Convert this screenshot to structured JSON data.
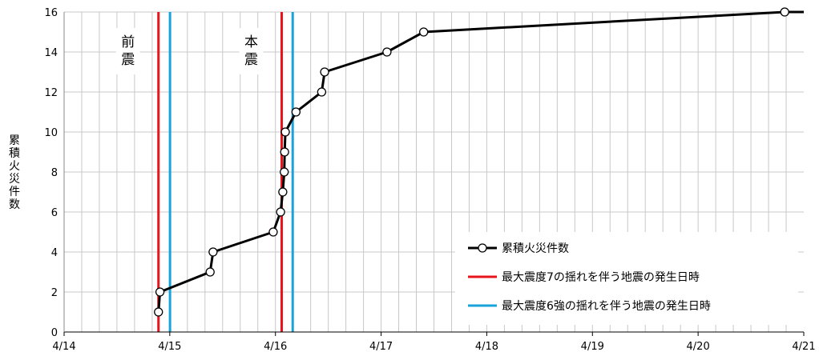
{
  "chart_data": {
    "type": "line",
    "title": "",
    "xlabel": "",
    "ylabel": "累積火災件数",
    "xlim": [
      "4/14",
      "4/21"
    ],
    "ylim": [
      0,
      16
    ],
    "x_ticks": [
      "4/14",
      "4/15",
      "4/16",
      "4/17",
      "4/18",
      "4/19",
      "4/20",
      "4/21"
    ],
    "y_ticks": [
      0,
      2,
      4,
      6,
      8,
      10,
      12,
      14,
      16
    ],
    "grid": true,
    "legend_position": "bottom-right",
    "series": [
      {
        "name": "累積火災件数",
        "color": "#000000",
        "marker": "open-circle",
        "x": [
          "4/14 21:26",
          "4/14 21:46",
          "4/15 09:10",
          "4/15 09:50",
          "4/15 23:30",
          "4/16 01:10",
          "4/16 01:40",
          "4/16 02:00",
          "4/16 02:05",
          "4/16 02:15",
          "4/16 04:40",
          "4/16 10:30",
          "4/16 11:10",
          "4/17 01:20",
          "4/17 09:40",
          "4/20 19:40"
        ],
        "y": [
          1,
          2,
          3,
          4,
          5,
          6,
          7,
          8,
          9,
          10,
          11,
          12,
          13,
          14,
          15,
          16
        ]
      }
    ],
    "reference_lines": [
      {
        "name": "最大震度7の揺れを伴う地震の発生日時",
        "color": "#e8141b",
        "x": [
          "4/14 21:26",
          "4/16 01:25"
        ]
      },
      {
        "name": "最大震度6強の揺れを伴う地震の発生日時",
        "color": "#1aa3d9",
        "x": [
          "4/15 00:03",
          "4/16 03:55"
        ]
      }
    ],
    "annotations": [
      {
        "text": "前震",
        "near": "4/14 21:26"
      },
      {
        "text": "本震",
        "near": "4/16 01:25"
      }
    ]
  }
}
